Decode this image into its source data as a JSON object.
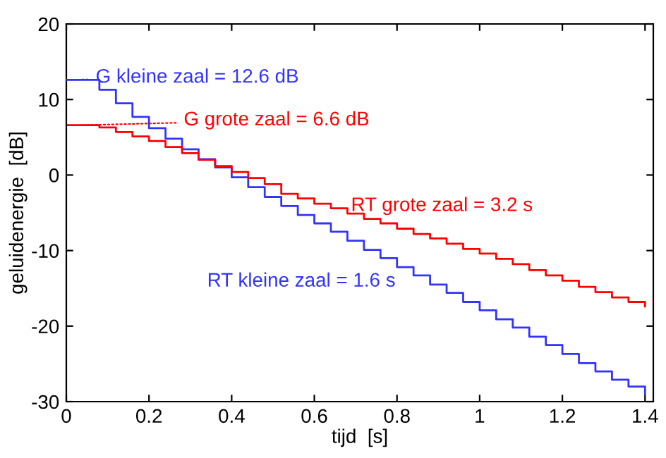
{
  "chart_data": {
    "type": "step",
    "xlabel": "tijd  [s]",
    "ylabel": "geluidenergie  [dB]",
    "x": [
      0,
      0.04,
      0.08,
      0.12,
      0.16,
      0.2,
      0.24,
      0.28,
      0.32,
      0.36,
      0.4,
      0.44,
      0.48,
      0.52,
      0.56,
      0.6,
      0.64,
      0.68,
      0.72,
      0.76,
      0.8,
      0.84,
      0.88,
      0.92,
      0.96,
      1.0,
      1.04,
      1.08,
      1.12,
      1.16,
      1.2,
      1.24,
      1.28,
      1.32,
      1.36,
      1.4
    ],
    "series": [
      {
        "color": "#3333ff",
        "values": [
          12.6,
          12.6,
          11.3,
          9.5,
          7.7,
          6.2,
          4.8,
          3.4,
          2.1,
          1.0,
          -0.3,
          -1.6,
          -2.9,
          -4.1,
          -5.3,
          -6.4,
          -7.5,
          -8.7,
          -9.9,
          -11.0,
          -12.2,
          -13.3,
          -14.5,
          -15.6,
          -16.8,
          -17.9,
          -19.1,
          -20.2,
          -21.4,
          -22.5,
          -23.7,
          -24.9,
          -26.0,
          -27.1,
          -28.0,
          -29.0
        ]
      },
      {
        "color": "#ff0000",
        "values": [
          6.6,
          6.6,
          6.3,
          5.7,
          5.1,
          4.5,
          3.7,
          2.9,
          2.0,
          1.2,
          0.4,
          -0.4,
          -1.2,
          -2.5,
          -3.1,
          -3.8,
          -4.4,
          -5.1,
          -5.8,
          -6.4,
          -7.1,
          -7.8,
          -8.4,
          -9.1,
          -9.8,
          -10.4,
          -11.1,
          -11.8,
          -12.6,
          -13.3,
          -14.0,
          -14.8,
          -15.5,
          -16.2,
          -16.8,
          -17.4
        ]
      }
    ],
    "annotations": [
      {
        "text": "G kleine zaal = 12.6 dB",
        "x": 0,
        "y": 12.6
      },
      "G grote zaal = 6.6 dB",
      "RT grote zaal = 3.2 s",
      "RT kleine zaal = 1.6 s"
    ],
    "xlim": [
      0,
      1.42
    ],
    "ylim": [
      -30,
      20
    ],
    "xticks": [
      0,
      0.2,
      0.4,
      0.6,
      0.8,
      1,
      1.2,
      1.4
    ],
    "yticks": [
      -30,
      -20,
      -10,
      0,
      10,
      20
    ],
    "grid": false,
    "legend": false
  }
}
